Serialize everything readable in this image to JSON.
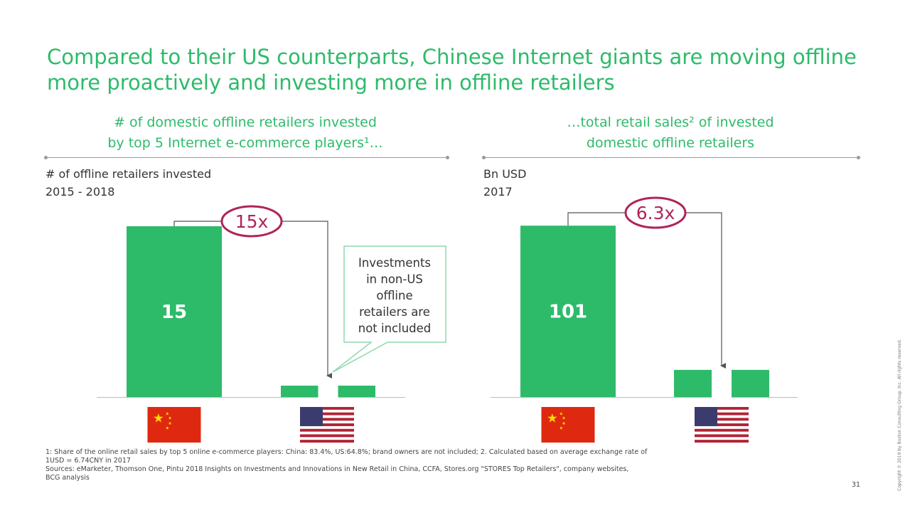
{
  "title": "Compared to their US counterparts, Chinese Internet giants are moving offline more proactively and investing more in offline retailers",
  "colors": {
    "bar": "#2dbb6a",
    "accent": "#b0245a",
    "callout": "#8fd8ac"
  },
  "left": {
    "subhead_line1": "# of domestic offline retailers invested",
    "subhead_line2": "by top 5 Internet e-commerce players¹…",
    "ylabel_line1": "# of offline retailers invested",
    "ylabel_line2": "2015 - 2018",
    "ratio": "15x",
    "callout": [
      "Investments",
      "in non-US",
      "offline",
      "retailers are",
      "not included"
    ]
  },
  "right": {
    "subhead_line1": "…total retail sales² of invested",
    "subhead_line2": "domestic offline retailers",
    "ylabel_line1": "Bn USD",
    "ylabel_line2": "2017",
    "ratio": "6.3x"
  },
  "chart_data": [
    {
      "type": "bar",
      "title": "# of domestic offline retailers invested by top 5 Internet e-commerce players¹…",
      "ylabel": "# of offline retailers invested 2015 - 2018",
      "categories": [
        "China",
        "US"
      ],
      "values": [
        15,
        1
      ],
      "ylim": [
        0,
        15.5
      ],
      "annotation": "15x"
    },
    {
      "type": "bar",
      "title": "…total retail sales² of invested domestic offline retailers",
      "ylabel": "Bn USD 2017",
      "categories": [
        "China",
        "US"
      ],
      "values": [
        101,
        16
      ],
      "ylim": [
        0,
        104
      ],
      "annotation": "6.3x"
    }
  ],
  "footnote_line1": "1: Share of the online retail sales by top 5 online e-commerce players: China: 83.4%, US:64.8%; brand owners are not included; 2. Calculated based on average exchange rate of",
  "footnote_line2": "1USD = 6.74CNY in 2017",
  "sources_line1": "Sources: eMarketer, Thomson One, Pintu 2018 Insights on Investments and Innovations in New Retail in China, CCFA, Stores.org \"STORES Top Retailers\", company websites,",
  "sources_line2": "BCG analysis",
  "page_number": "31",
  "copyright": "Copyright © 2019 by Boston Consulting Group, Inc. All rights reserved."
}
